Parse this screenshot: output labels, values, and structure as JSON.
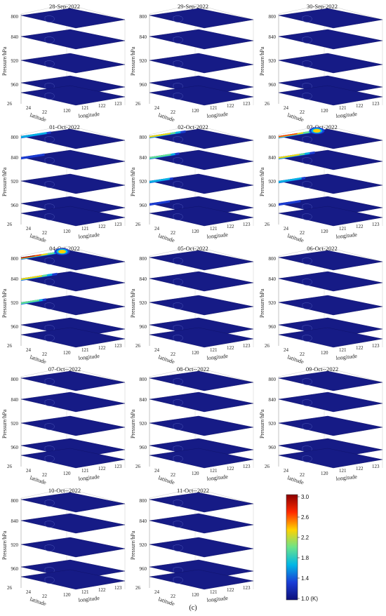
{
  "caption": "(c)",
  "units": "(K)",
  "colorbar": {
    "ticks": [
      "3.0",
      "2.6",
      "2.2",
      "1.8",
      "1.4",
      "1.0"
    ],
    "colors": [
      "#8b0000",
      "#ff2a00",
      "#ffd200",
      "#6be38a",
      "#00b7e6",
      "#1a3dd6",
      "#0d0f7a"
    ]
  },
  "axes": {
    "pressure_label": "Pressure/hPa",
    "pressure_ticks": [
      "800",
      "840",
      "920",
      "960"
    ],
    "latitude_label": "latitude",
    "latitude_ticks": [
      "26",
      "24",
      "22"
    ],
    "longitude_label": "longitude",
    "longitude_ticks": [
      "120",
      "121",
      "122",
      "123"
    ]
  },
  "chart_data": {
    "type": "heatmap",
    "description_units": "K",
    "value_range": [
      1.0,
      3.0
    ],
    "panels": [
      {
        "title": "28-Sep-2022",
        "hotspots": []
      },
      {
        "title": "29-Sep-2022",
        "hotspots": []
      },
      {
        "title": "30-Sep-2022",
        "hotspots": []
      },
      {
        "title": "01-Oct-2022",
        "hotspots": [
          {
            "level": 0,
            "intensity": 1.6,
            "spread": 0.5
          },
          {
            "level": 1,
            "intensity": 1.4,
            "spread": 0.3
          }
        ]
      },
      {
        "title": "02-Oct-2022",
        "hotspots": [
          {
            "level": 0,
            "intensity": 2.6,
            "spread": 0.7
          },
          {
            "level": 1,
            "intensity": 2.3,
            "spread": 0.5
          },
          {
            "level": 2,
            "intensity": 1.6,
            "spread": 0.3
          },
          {
            "level": 3,
            "intensity": 1.4,
            "spread": 0.2
          }
        ]
      },
      {
        "title": "03-Oct-2022",
        "hotspots": [
          {
            "level": 0,
            "intensity": 2.9,
            "spread": 0.9,
            "blob": 2.4
          },
          {
            "level": 1,
            "intensity": 2.6,
            "spread": 0.7
          },
          {
            "level": 2,
            "intensity": 1.8,
            "spread": 0.4
          },
          {
            "level": 3,
            "intensity": 1.5,
            "spread": 0.25
          }
        ]
      },
      {
        "title": "04-Oct-2022",
        "hotspots": [
          {
            "level": 0,
            "intensity": 3.0,
            "spread": 1.0,
            "blob": 2.3
          },
          {
            "level": 1,
            "intensity": 2.7,
            "spread": 0.7
          },
          {
            "level": 2,
            "intensity": 2.0,
            "spread": 0.35
          }
        ]
      },
      {
        "title": "05-Oct-2022",
        "hotspots": []
      },
      {
        "title": "06-Oct-2022",
        "hotspots": []
      },
      {
        "title": "07-Oct--2022",
        "hotspots": []
      },
      {
        "title": "08-Oct--2022",
        "hotspots": []
      },
      {
        "title": "09-Oct--2022",
        "hotspots": []
      },
      {
        "title": "10-Oct--2022",
        "hotspots": []
      },
      {
        "title": "11-Oct--2022",
        "hotspots": []
      }
    ]
  }
}
